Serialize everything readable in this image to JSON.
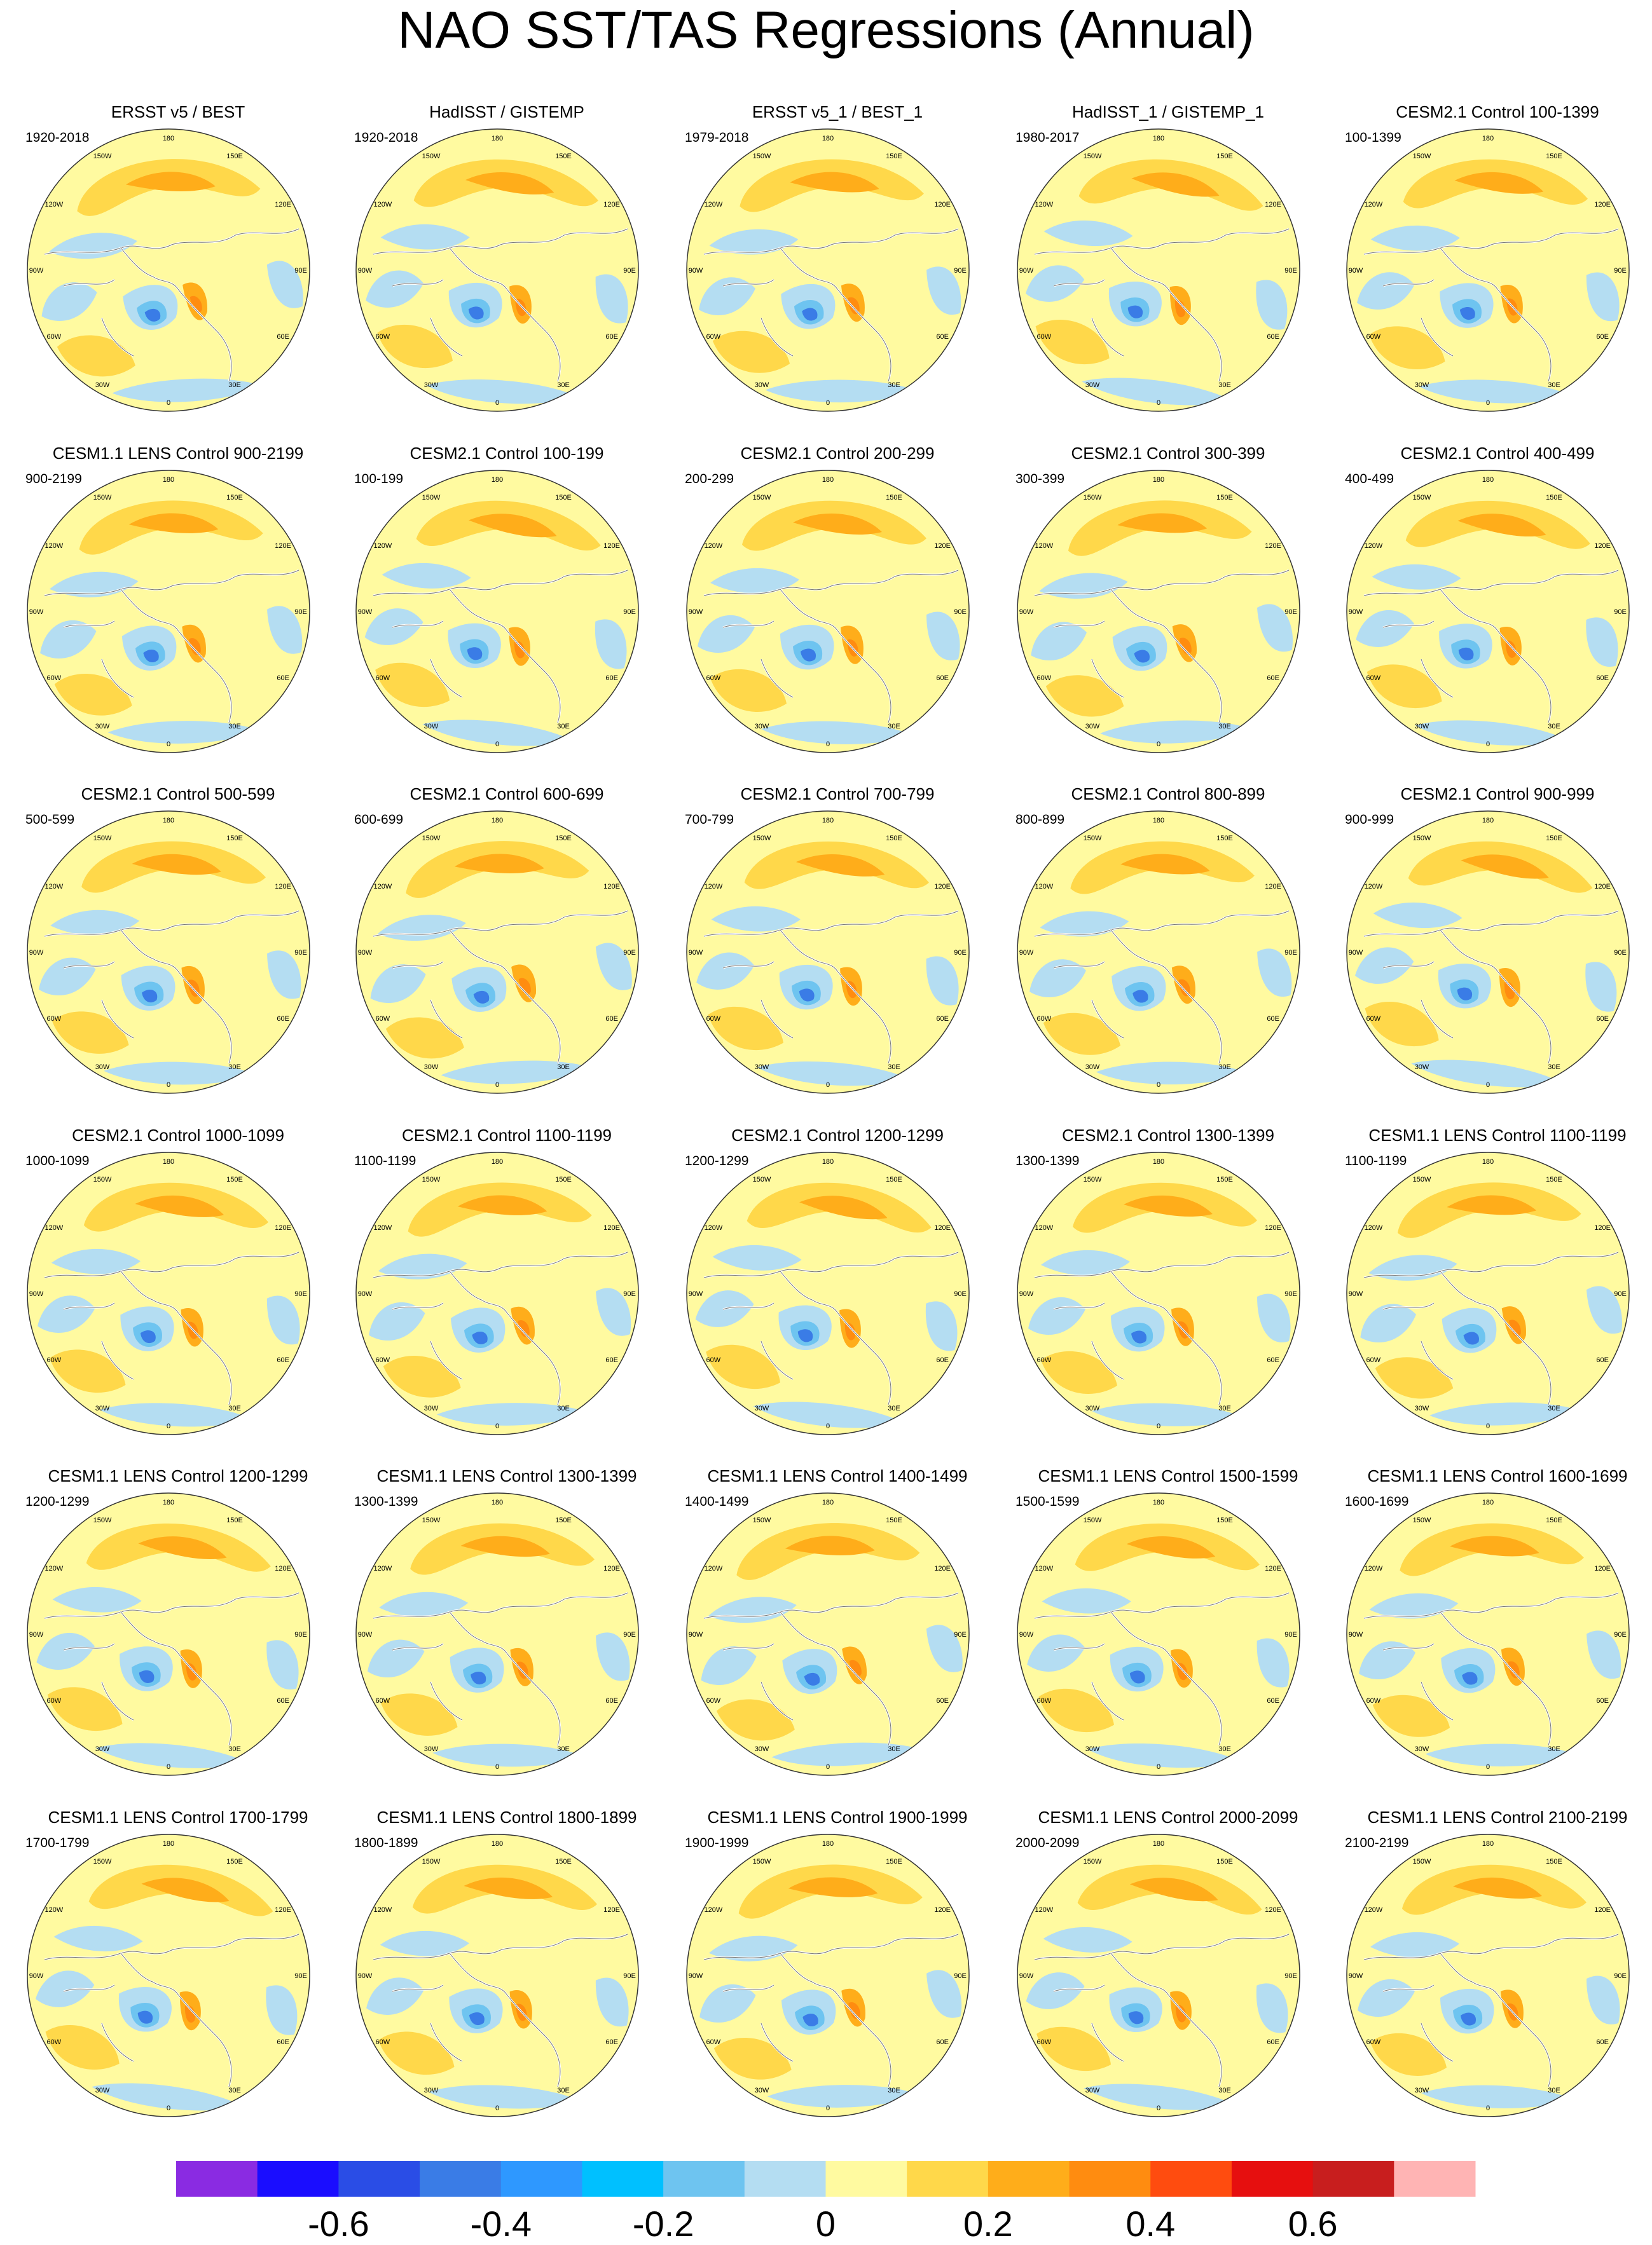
{
  "title": "NAO SST/TAS Regressions (Annual)",
  "lon_labels": [
    "180",
    "150E",
    "120E",
    "90E",
    "60E",
    "30E",
    "0",
    "30W",
    "60W",
    "90W",
    "120W",
    "150W"
  ],
  "panels": [
    {
      "title": "ERSST v5 / BEST",
      "years": "1920-2018"
    },
    {
      "title": "HadISST / GISTEMP",
      "years": "1920-2018"
    },
    {
      "title": "ERSST v5_1 / BEST_1",
      "years": "1979-2018"
    },
    {
      "title": "HadISST_1 / GISTEMP_1",
      "years": "1980-2017"
    },
    {
      "title": "CESM2.1 Control 100-1399",
      "years": "100-1399"
    },
    {
      "title": "CESM1.1 LENS Control 900-2199",
      "years": "900-2199"
    },
    {
      "title": "CESM2.1 Control 100-199",
      "years": "100-199"
    },
    {
      "title": "CESM2.1 Control 200-299",
      "years": "200-299"
    },
    {
      "title": "CESM2.1 Control 300-399",
      "years": "300-399"
    },
    {
      "title": "CESM2.1 Control 400-499",
      "years": "400-499"
    },
    {
      "title": "CESM2.1 Control 500-599",
      "years": "500-599"
    },
    {
      "title": "CESM2.1 Control 600-699",
      "years": "600-699"
    },
    {
      "title": "CESM2.1 Control 700-799",
      "years": "700-799"
    },
    {
      "title": "CESM2.1 Control 800-899",
      "years": "800-899"
    },
    {
      "title": "CESM2.1 Control 900-999",
      "years": "900-999"
    },
    {
      "title": "CESM2.1 Control 1000-1099",
      "years": "1000-1099"
    },
    {
      "title": "CESM2.1 Control 1100-1199",
      "years": "1100-1199"
    },
    {
      "title": "CESM2.1 Control 1200-1299",
      "years": "1200-1299"
    },
    {
      "title": "CESM2.1 Control 1300-1399",
      "years": "1300-1399"
    },
    {
      "title": "CESM1.1 LENS Control 1100-1199",
      "years": "1100-1199"
    },
    {
      "title": "CESM1.1 LENS Control 1200-1299",
      "years": "1200-1299"
    },
    {
      "title": "CESM1.1 LENS Control 1300-1399",
      "years": "1300-1399"
    },
    {
      "title": "CESM1.1 LENS Control 1400-1499",
      "years": "1400-1499"
    },
    {
      "title": "CESM1.1 LENS Control 1500-1599",
      "years": "1500-1599"
    },
    {
      "title": "CESM1.1 LENS Control 1600-1699",
      "years": "1600-1699"
    },
    {
      "title": "CESM1.1 LENS Control 1700-1799",
      "years": "1700-1799"
    },
    {
      "title": "CESM1.1 LENS Control 1800-1899",
      "years": "1800-1899"
    },
    {
      "title": "CESM1.1 LENS Control 1900-1999",
      "years": "1900-1999"
    },
    {
      "title": "CESM1.1 LENS Control 2000-2099",
      "years": "2000-2099"
    },
    {
      "title": "CESM1.1 LENS Control 2100-2199",
      "years": "2100-2199"
    }
  ],
  "colorbar": {
    "colors": [
      "#8a2be2",
      "#1a0dff",
      "#2a4de6",
      "#3a7ce6",
      "#2e98ff",
      "#00c0ff",
      "#6ec4f0",
      "#b4ddf2",
      "#fffaa0",
      "#ffd84a",
      "#ffad1a",
      "#ff8c10",
      "#ff4c0f",
      "#e60f0f",
      "#c81e1e",
      "#ffb4b4"
    ],
    "tick_labels": [
      "-0.6",
      "-0.4",
      "-0.2",
      "0",
      "0.2",
      "0.4",
      "0.6"
    ]
  }
}
